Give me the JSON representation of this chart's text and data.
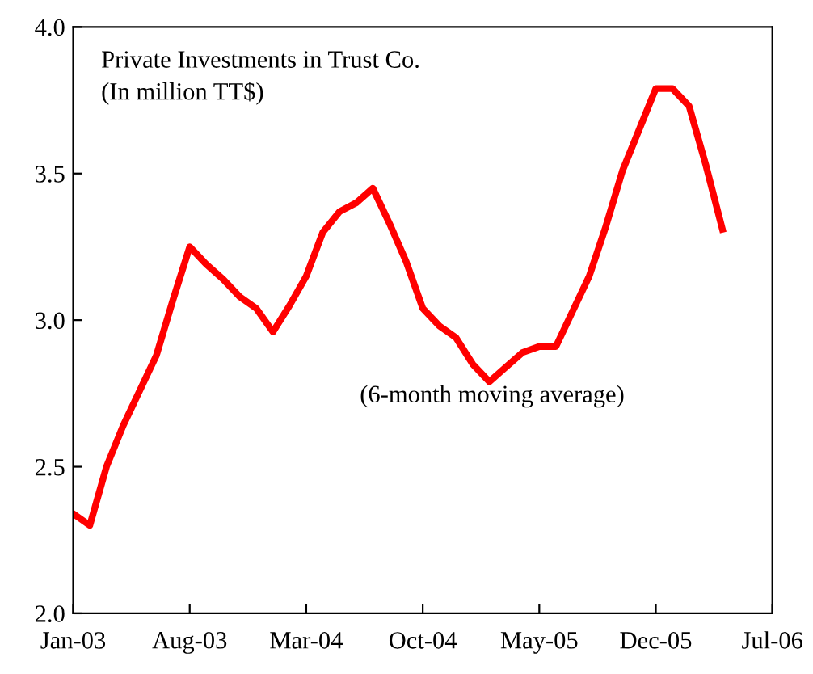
{
  "chart_data": {
    "type": "line",
    "title": "Private Investments in Trust Co.\n(In million TT$)",
    "annotations": [
      "(6-month moving average)"
    ],
    "x": [
      "2003-01",
      "2003-02",
      "2003-03",
      "2003-04",
      "2003-05",
      "2003-06",
      "2003-07",
      "2003-08",
      "2003-09",
      "2003-10",
      "2003-11",
      "2003-12",
      "2004-01",
      "2004-02",
      "2004-03",
      "2004-04",
      "2004-05",
      "2004-06",
      "2004-07",
      "2004-08",
      "2004-09",
      "2004-10",
      "2004-11",
      "2004-12",
      "2005-01",
      "2005-02",
      "2005-03",
      "2005-04",
      "2005-05",
      "2005-06",
      "2005-07",
      "2005-08",
      "2005-09",
      "2005-10",
      "2005-11",
      "2005-12",
      "2006-01",
      "2006-02",
      "2006-03",
      "2006-04"
    ],
    "series": [
      {
        "color": "#ff0000",
        "values": [
          2.34,
          2.3,
          2.5,
          2.64,
          2.76,
          2.88,
          3.07,
          3.25,
          3.19,
          3.14,
          3.08,
          3.04,
          2.96,
          3.05,
          3.15,
          3.3,
          3.37,
          3.4,
          3.45,
          3.33,
          3.2,
          3.04,
          2.98,
          2.94,
          2.85,
          2.79,
          2.84,
          2.89,
          2.91,
          2.91,
          3.03,
          3.15,
          3.32,
          3.51,
          3.65,
          3.79,
          3.79,
          3.73,
          3.53,
          3.31
        ]
      }
    ],
    "xlim": [
      "2003-01",
      "2006-07"
    ],
    "xticks": [
      {
        "value": "2003-01",
        "label": "Jan-03"
      },
      {
        "value": "2003-08",
        "label": "Aug-03"
      },
      {
        "value": "2004-03",
        "label": "Mar-04"
      },
      {
        "value": "2004-10",
        "label": "Oct-04"
      },
      {
        "value": "2005-05",
        "label": "May-05"
      },
      {
        "value": "2005-12",
        "label": "Dec-05"
      },
      {
        "value": "2006-07",
        "label": "Jul-06"
      }
    ],
    "ylim": [
      2.0,
      4.0
    ],
    "yticks": [
      {
        "value": 2.0,
        "label": "2.0"
      },
      {
        "value": 2.5,
        "label": "2.5"
      },
      {
        "value": 3.0,
        "label": "3.0"
      },
      {
        "value": 3.5,
        "label": "3.5"
      },
      {
        "value": 4.0,
        "label": "4.0"
      }
    ],
    "grid": false,
    "legend": false,
    "marker": "none",
    "line_style": "solid"
  }
}
